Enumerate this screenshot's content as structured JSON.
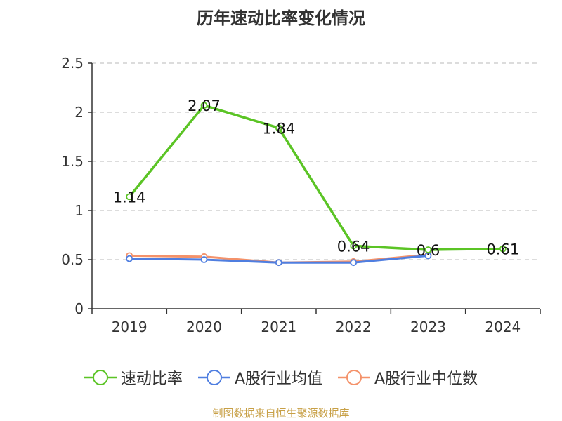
{
  "chart_data": {
    "type": "line",
    "title": "历年速动比率变化情况",
    "categories": [
      "2019",
      "2020",
      "2021",
      "2022",
      "2023",
      "2024"
    ],
    "ylim": [
      0,
      2.5
    ],
    "yticks": [
      "0",
      "0.5",
      "1",
      "1.5",
      "2",
      "2.5"
    ],
    "grid": true,
    "legend_position": "bottom",
    "series": [
      {
        "name": "速动比率",
        "color": "#5bc425",
        "values": [
          1.14,
          2.07,
          1.84,
          0.64,
          0.6,
          0.61
        ],
        "labels": [
          "1.14",
          "2.07",
          "1.84",
          "0.64",
          "0.6",
          "0.61"
        ]
      },
      {
        "name": "A股行业均值",
        "color": "#4f7ee0",
        "values": [
          0.51,
          0.5,
          0.47,
          0.47,
          0.54,
          null
        ]
      },
      {
        "name": "A股行业中位数",
        "color": "#f4926a",
        "values": [
          0.54,
          0.53,
          0.47,
          0.48,
          0.55,
          null
        ]
      }
    ]
  },
  "source_text": "制图数据来自恒生聚源数据库"
}
